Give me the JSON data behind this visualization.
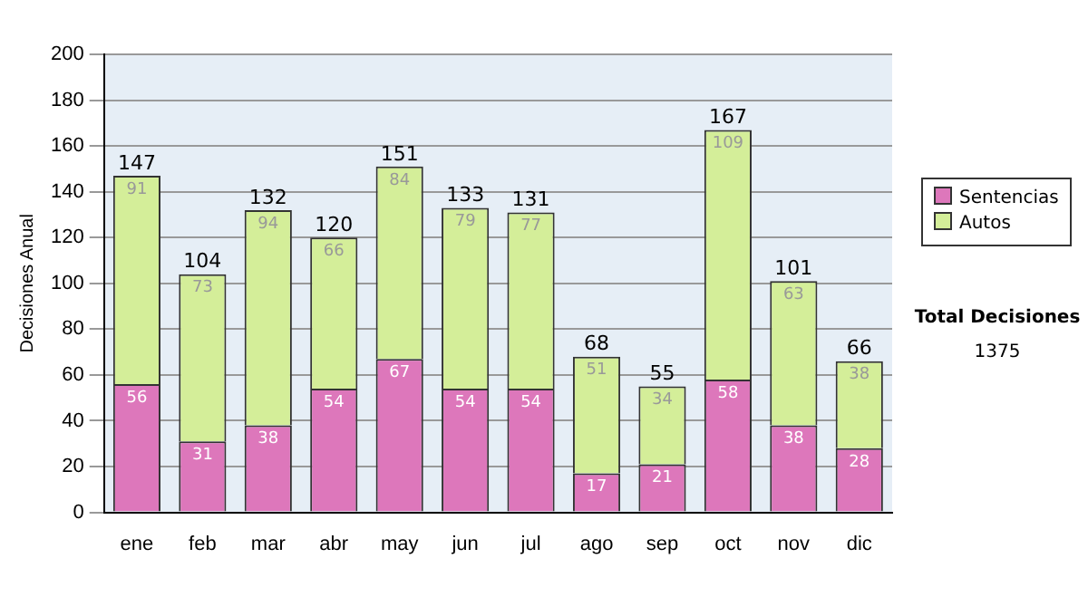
{
  "chart_data": {
    "type": "bar",
    "stacked": true,
    "ylabel": "Decisiones Anual",
    "categories": [
      "ene",
      "feb",
      "mar",
      "abr",
      "may",
      "jun",
      "jul",
      "ago",
      "sep",
      "oct",
      "nov",
      "dic"
    ],
    "series": [
      {
        "name": "Sentencias",
        "color": "#dd77bb",
        "values": [
          56,
          31,
          38,
          54,
          67,
          54,
          54,
          17,
          21,
          58,
          38,
          28
        ]
      },
      {
        "name": "Autos",
        "color": "#d4ee99",
        "values": [
          91,
          73,
          94,
          66,
          84,
          79,
          77,
          51,
          34,
          109,
          63,
          38
        ]
      }
    ],
    "totals": [
      "147",
      "104",
      "132",
      "120",
      "151",
      "133",
      "131",
      "68",
      "55",
      "167",
      "101",
      "66"
    ],
    "data_labels": true,
    "ylim": [
      0,
      200
    ],
    "yticks": [
      0,
      20,
      40,
      60,
      80,
      100,
      120,
      140,
      160,
      180,
      200
    ],
    "grid": "y",
    "legend": "right",
    "annotations": [
      "Total Decisiones",
      "1375"
    ]
  }
}
